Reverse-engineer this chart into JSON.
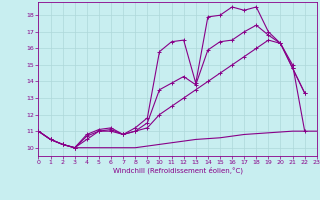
{
  "xlabel": "Windchill (Refroidissement éolien,°C)",
  "background_color": "#c8eef0",
  "grid_color": "#aed8da",
  "line_color": "#880088",
  "xmin": 0,
  "xmax": 23,
  "ymin": 9.5,
  "ymax": 18.8,
  "yticks": [
    10,
    11,
    12,
    13,
    14,
    15,
    16,
    17,
    18
  ],
  "xticks": [
    0,
    1,
    2,
    3,
    4,
    5,
    6,
    7,
    8,
    9,
    10,
    11,
    12,
    13,
    14,
    15,
    16,
    17,
    18,
    19,
    20,
    21,
    22,
    23
  ],
  "series": [
    {
      "x": [
        0,
        1,
        2,
        3,
        4,
        5,
        6,
        7,
        8,
        9,
        10,
        11,
        12,
        13,
        14,
        15,
        16,
        17,
        18,
        19,
        20,
        21,
        22,
        23
      ],
      "y": [
        11.0,
        10.5,
        10.2,
        10.0,
        10.0,
        10.0,
        10.0,
        10.0,
        10.0,
        10.1,
        10.2,
        10.3,
        10.4,
        10.5,
        10.55,
        10.6,
        10.7,
        10.8,
        10.85,
        10.9,
        10.95,
        11.0,
        11.0,
        11.0
      ],
      "marker": null,
      "lw": 0.8
    },
    {
      "x": [
        0,
        1,
        2,
        3,
        4,
        5,
        6,
        7,
        8,
        9,
        10,
        11,
        12,
        13,
        14,
        15,
        16,
        17,
        18,
        19,
        20,
        21,
        22
      ],
      "y": [
        11.0,
        10.5,
        10.2,
        10.0,
        10.5,
        11.0,
        11.0,
        10.8,
        11.0,
        11.2,
        12.0,
        12.5,
        13.0,
        13.5,
        14.0,
        14.5,
        15.0,
        15.5,
        16.0,
        16.5,
        16.3,
        15.0,
        11.0
      ],
      "marker": "+",
      "lw": 0.8
    },
    {
      "x": [
        0,
        1,
        2,
        3,
        4,
        5,
        6,
        7,
        8,
        9,
        10,
        11,
        12,
        13,
        14,
        15,
        16,
        17,
        18,
        19,
        20,
        21,
        22
      ],
      "y": [
        11.0,
        10.5,
        10.2,
        10.0,
        10.7,
        11.0,
        11.1,
        10.8,
        11.0,
        11.5,
        13.5,
        13.9,
        14.3,
        13.8,
        15.9,
        16.4,
        16.5,
        17.0,
        17.4,
        16.8,
        16.3,
        14.8,
        13.3
      ],
      "marker": "+",
      "lw": 0.8
    },
    {
      "x": [
        0,
        1,
        2,
        3,
        4,
        5,
        6,
        7,
        8,
        9,
        10,
        11,
        12,
        13,
        14,
        15,
        16,
        17,
        18,
        19,
        20,
        21,
        22
      ],
      "y": [
        11.0,
        10.5,
        10.2,
        10.0,
        10.8,
        11.1,
        11.2,
        10.8,
        11.2,
        11.8,
        15.8,
        16.4,
        16.5,
        13.9,
        17.9,
        18.0,
        18.5,
        18.3,
        18.5,
        17.0,
        16.3,
        14.8,
        13.3
      ],
      "marker": "+",
      "lw": 0.8
    }
  ]
}
